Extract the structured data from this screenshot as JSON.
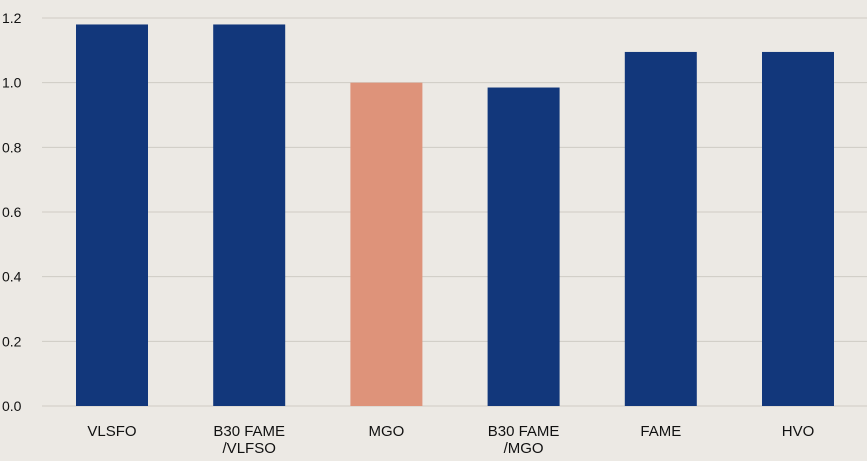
{
  "colors": {
    "background": "#ece9e4",
    "bar_primary": "#12377b",
    "bar_highlight": "#de937a",
    "grid": "#cfcbc4"
  },
  "chart_data": {
    "type": "bar",
    "title": "",
    "xlabel": "",
    "ylabel": "",
    "categories": [
      [
        "VLSFO"
      ],
      [
        "B30 FAME",
        "/VLFSO"
      ],
      [
        "MGO"
      ],
      [
        "B30 FAME",
        "/MGO"
      ],
      [
        "FAME"
      ],
      [
        "HVO"
      ]
    ],
    "values": [
      1.18,
      1.18,
      1.0,
      0.985,
      1.095,
      1.095
    ],
    "highlight_index": 2,
    "ylim": [
      0,
      1.2
    ],
    "yticks": [
      "0.0",
      "0.2",
      "0.4",
      "0.6",
      "0.8",
      "1.0",
      "1.2"
    ],
    "grid": "horizontal",
    "legend": "none"
  }
}
